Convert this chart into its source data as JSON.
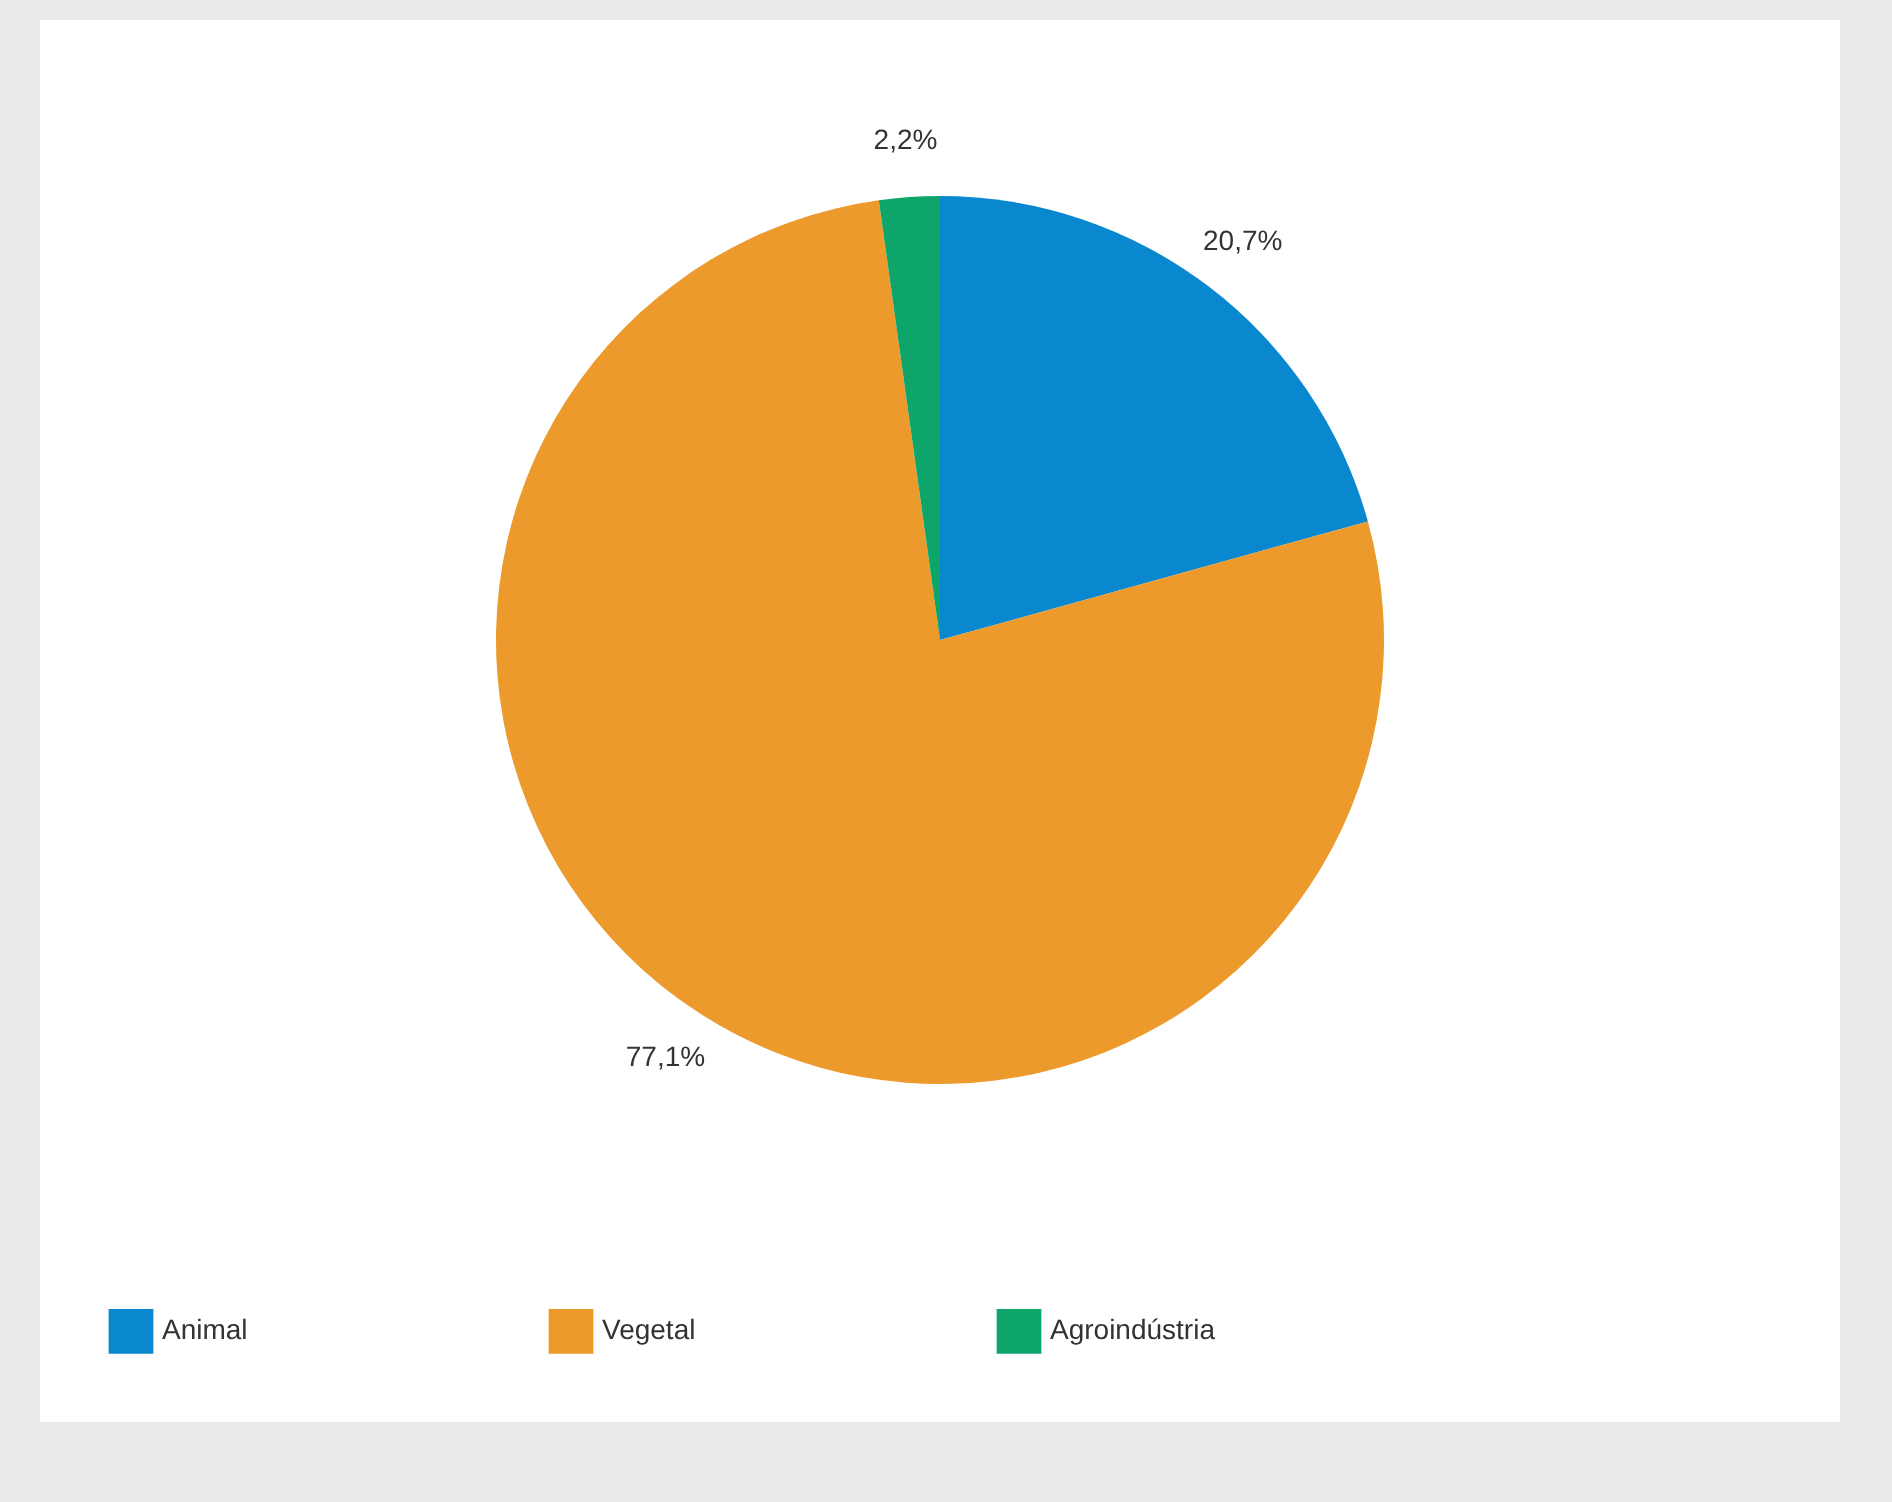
{
  "chart_data": {
    "type": "pie",
    "categories": [
      "Animal",
      "Vegetal",
      "Agroindústria"
    ],
    "values": [
      20.7,
      77.1,
      2.2
    ],
    "colors": [
      "#0a88cf",
      "#ec9a2c",
      "#0ea56b"
    ],
    "value_labels": [
      "20,7%",
      "77,1%",
      "2,2%"
    ],
    "legend": "bottom"
  }
}
